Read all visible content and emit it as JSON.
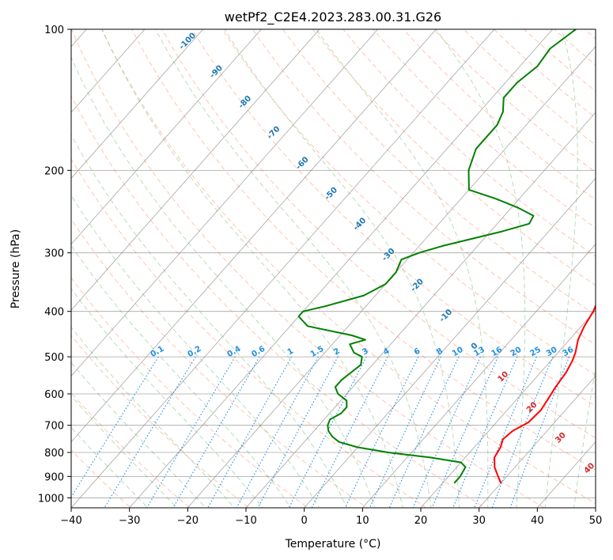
{
  "chart_data": {
    "type": "skew-t",
    "title": "wetPf2_C2E4.2023.283.00.31.G26",
    "xlabel": "Temperature (°C)",
    "ylabel": "Pressure (hPa)",
    "xlim": [
      -40,
      50
    ],
    "ylim": [
      1050,
      100
    ],
    "y_scale": "log",
    "grid": true,
    "x_ticks": [
      "−40",
      "−30",
      "−20",
      "−10",
      "0",
      "10",
      "20",
      "30",
      "40",
      "50"
    ],
    "x_tick_values": [
      -40,
      -30,
      -20,
      -10,
      0,
      10,
      20,
      30,
      40,
      50
    ],
    "y_ticks": [
      "100",
      "200",
      "300",
      "400",
      "500",
      "600",
      "700",
      "800",
      "900",
      "1000"
    ],
    "y_tick_values": [
      100,
      200,
      300,
      400,
      500,
      600,
      700,
      800,
      900,
      1000
    ],
    "dry_adiabat_labels": [
      "-100",
      "-90",
      "-80",
      "-70",
      "-60",
      "-50",
      "-40",
      "-30",
      "-20",
      "-10",
      "0",
      "10",
      "20",
      "30",
      "40"
    ],
    "mixing_ratio_labels": [
      "0.1",
      "0.2",
      "0.4",
      "0.6",
      "1",
      "1.5",
      "2",
      "3",
      "4",
      "6",
      "8",
      "10",
      "13",
      "16",
      "20",
      "25",
      "30",
      "36"
    ],
    "colors": {
      "temperature": "#ff0000",
      "dewpoint": "#008000",
      "dry_adiabat": "#ff9f7f",
      "moist_adiabat": "#7fbf7f",
      "mixing_ratio": "#1f8fe0",
      "isotherm": "#808080",
      "dry_label": "#1f77b4",
      "warm_label": "#d62728"
    },
    "series": [
      {
        "key": "temperature",
        "pressure": [
          930,
          900,
          860,
          820,
          780,
          750,
          720,
          690,
          650,
          620,
          580,
          540,
          510,
          490,
          460,
          430,
          400,
          370,
          340,
          310,
          280,
          260,
          240,
          220,
          200,
          180,
          160,
          150,
          140,
          130,
          120,
          110,
          100
        ],
        "values": [
          30,
          28.5,
          26.5,
          25,
          24.5,
          23.7,
          24.1,
          25.5,
          25.8,
          25.4,
          24.8,
          24.4,
          23.7,
          23,
          21.5,
          20.5,
          19.8,
          18.5,
          16.5,
          14.5,
          12.5,
          10,
          7.5,
          5,
          3,
          1,
          -0.5,
          -1.5,
          -2,
          -3,
          -3.5,
          -3.5,
          -4
        ]
      },
      {
        "key": "dewpoint",
        "pressure": [
          930,
          900,
          860,
          840,
          820,
          800,
          780,
          760,
          740,
          720,
          700,
          680,
          660,
          640,
          620,
          600,
          580,
          560,
          540,
          520,
          500,
          490,
          480,
          470,
          460,
          450,
          430,
          410,
          400,
          390,
          370,
          350,
          330,
          310,
          300,
          290,
          270,
          260,
          250,
          240,
          230,
          220,
          200,
          180,
          160,
          150,
          140,
          130,
          120,
          110,
          100
        ],
        "values": [
          22,
          22,
          21.5,
          20,
          14,
          6,
          0,
          -4,
          -6,
          -7.5,
          -8.5,
          -9,
          -8,
          -8,
          -9,
          -11.5,
          -13,
          -13,
          -12.5,
          -12,
          -13,
          -15,
          -16,
          -17,
          -15,
          -18,
          -27,
          -30,
          -30,
          -27,
          -22,
          -20,
          -20,
          -21,
          -19,
          -16,
          -8,
          -4.5,
          -5,
          -9,
          -14,
          -20,
          -23,
          -25,
          -25,
          -26,
          -28,
          -28,
          -27,
          -27.5,
          -26
        ]
      }
    ]
  }
}
